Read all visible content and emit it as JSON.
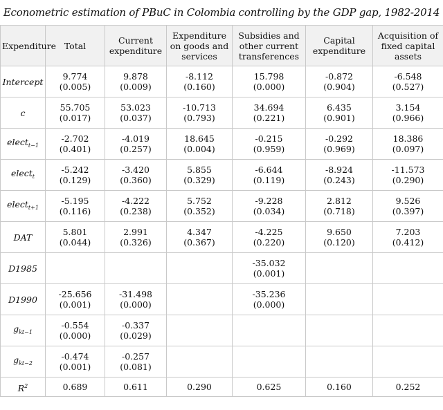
{
  "title": "Econometric estimation of PBuC in Colombia controlling by the GDP gap, 1982-2014",
  "columns": [
    "Expenditure",
    "Total",
    "Current expenditure",
    "Expenditure on goods and services",
    "Subsidies and other current transferences",
    "Capital expenditure",
    "Acquisition of fixed capital assets"
  ],
  "rows": [
    {
      "label": "Intercept",
      "cells": [
        [
          "9.774",
          "(0.005)"
        ],
        [
          "9.878",
          "(0.009)"
        ],
        [
          "-8.112",
          "(0.160)"
        ],
        [
          "15.798",
          "(0.000)"
        ],
        [
          "-0.872",
          "(0.904)"
        ],
        [
          "-6.548",
          "(0.527)"
        ]
      ]
    },
    {
      "label": "c",
      "cells": [
        [
          "55.705",
          "(0.017)"
        ],
        [
          "53.023",
          "(0.037)"
        ],
        [
          "-10.713",
          "(0.793)"
        ],
        [
          "34.694",
          "(0.221)"
        ],
        [
          "6.435",
          "(0.901)"
        ],
        [
          "3.154",
          "(0.966)"
        ]
      ]
    },
    {
      "label": "elect",
      "sub": "t−1",
      "cells": [
        [
          "-2.702",
          "(0.401)"
        ],
        [
          "-4.019",
          "(0.257)"
        ],
        [
          "18.645",
          "(0.004)"
        ],
        [
          "-0.215",
          "(0.959)"
        ],
        [
          "-0.292",
          "(0.969)"
        ],
        [
          "18.386",
          "(0.097)"
        ]
      ]
    },
    {
      "label": "elect",
      "sub": "t",
      "cells": [
        [
          "-5.242",
          "(0.129)"
        ],
        [
          "-3.420",
          "(0.360)"
        ],
        [
          "5.855",
          "(0.329)"
        ],
        [
          "-6.644",
          "(0.119)"
        ],
        [
          "-8.924",
          "(0.243)"
        ],
        [
          "-11.573",
          "(0.290)"
        ]
      ]
    },
    {
      "label": "elect",
      "sub": "t+1",
      "cells": [
        [
          "-5.195",
          "(0.116)"
        ],
        [
          "-4.222",
          "(0.238)"
        ],
        [
          "5.752",
          "(0.352)"
        ],
        [
          "-9.228",
          "(0.034)"
        ],
        [
          "2.812",
          "(0.718)"
        ],
        [
          "9.526",
          "(0.397)"
        ]
      ]
    },
    {
      "label": "DAT",
      "cells": [
        [
          "5.801",
          "(0.044)"
        ],
        [
          "2.991",
          "(0.326)"
        ],
        [
          "4.347",
          "(0.367)"
        ],
        [
          "-4.225",
          "(0.220)"
        ],
        [
          "9.650",
          "(0.120)"
        ],
        [
          "7.203",
          "(0.412)"
        ]
      ]
    },
    {
      "label": "D1985",
      "cells": [
        [
          "",
          ""
        ],
        [
          "",
          ""
        ],
        [
          "",
          ""
        ],
        [
          "-35.032",
          "(0.001)"
        ],
        [
          "",
          ""
        ],
        [
          "",
          ""
        ]
      ]
    },
    {
      "label": "D1990",
      "cells": [
        [
          "-25.656",
          "(0.001)"
        ],
        [
          "-31.498",
          "(0.000)"
        ],
        [
          "",
          ""
        ],
        [
          "-35.236",
          "(0.000)"
        ],
        [
          "",
          ""
        ],
        [
          "",
          ""
        ]
      ]
    },
    {
      "label": "g",
      "sub": "kt−1",
      "cells": [
        [
          "-0.554",
          "(0.000)"
        ],
        [
          "-0.337",
          "(0.029)"
        ],
        [
          "",
          ""
        ],
        [
          "",
          ""
        ],
        [
          "",
          ""
        ],
        [
          "",
          ""
        ]
      ]
    },
    {
      "label": "g",
      "sub": "kt−2",
      "cells": [
        [
          "-0.474",
          "(0.001)"
        ],
        [
          "-0.257",
          "(0.081)"
        ],
        [
          "",
          ""
        ],
        [
          "",
          ""
        ],
        [
          "",
          ""
        ],
        [
          "",
          ""
        ]
      ]
    },
    {
      "label": "R",
      "sup": "2",
      "single": true,
      "cells": [
        [
          "0.689"
        ],
        [
          "0.611"
        ],
        [
          "0.290"
        ],
        [
          "0.625"
        ],
        [
          "0.160"
        ],
        [
          "0.252"
        ]
      ]
    }
  ]
}
